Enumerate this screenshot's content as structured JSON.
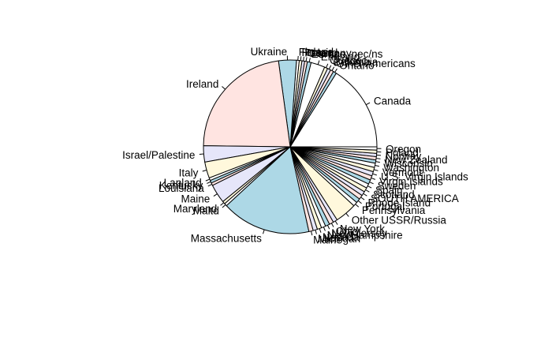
{
  "chart_data": {
    "type": "pie",
    "title": "",
    "start_angle_deg": 0,
    "direction": "counterclockwise",
    "colors": [
      "#ffffff",
      "#add8e6",
      "#ffe4e1",
      "#e6e6fa",
      "#fff8dc"
    ],
    "categories": [
      "Canada",
      "Ontario",
      "Other Americans",
      "Colombia",
      "Quebec",
      "England",
      "Europe, nec/ns",
      "Germany",
      "Poland",
      "Russia",
      "Finland",
      "Ukraine",
      "Ireland",
      "Israel/Palestine",
      "Italy",
      "Lapland",
      "Kentucky",
      "Louisiana",
      "Maine",
      "Maryland",
      "Maltd",
      "Massachusetts",
      "Maine",
      "Michigan",
      "Nevada",
      "New Hampshire",
      "New Jersey",
      "Ohio",
      "New York",
      "Other USSR/Russia",
      "Pennsylvania",
      "Portugal",
      "Rhode Island",
      "SOUTH AMERICA",
      "Scotland",
      "Spain",
      "Sweden",
      "Virgin Islands",
      "U.S. Virgin Islands",
      "Vermont",
      "Washington",
      "Wisconsin",
      "New Zealand",
      "Norway",
      "Poland",
      "Oregon"
    ],
    "values": [
      16,
      0.6,
      0.6,
      0.6,
      0.6,
      2.6,
      0.7,
      0.5,
      0.5,
      0.5,
      0.5,
      3.3,
      22.5,
      3.0,
      3.0,
      0.5,
      0.5,
      0.5,
      3.5,
      0.5,
      0.5,
      16.5,
      0.8,
      0.8,
      0.8,
      0.8,
      0.8,
      0.8,
      0.8,
      4.0,
      0.8,
      0.8,
      0.8,
      0.8,
      0.8,
      0.8,
      0.8,
      0.8,
      0.8,
      0.8,
      0.8,
      0.6,
      0.6,
      0.6,
      0.6,
      0.6
    ]
  }
}
